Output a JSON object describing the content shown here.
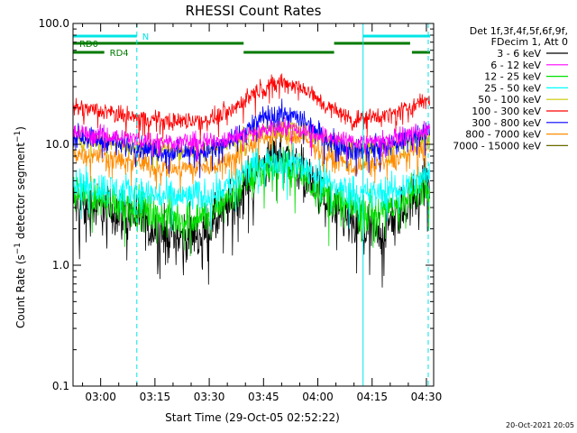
{
  "chart_data": {
    "type": "line",
    "title": "RHESSI Count Rates",
    "xlabel": "Start Time (29-Oct-05 02:52:22)",
    "ylabel": "Count Rate (s⁻¹ detector segment⁻¹)",
    "ylabel_parts": {
      "base": "Count Rate (s",
      "sup1": "−1",
      "mid": " detector segment",
      "sup2": "−1",
      "end": ")"
    },
    "yscale": "log",
    "ylim": [
      0.1,
      100.0
    ],
    "xlim": [
      "02:52:22",
      "04:32:00"
    ],
    "yticks": [
      {
        "value": 0.1,
        "label": "0.1"
      },
      {
        "value": 1.0,
        "label": "1.0"
      },
      {
        "value": 10.0,
        "label": "10.0"
      },
      {
        "value": 100.0,
        "label": "100.0"
      }
    ],
    "xticks": [
      "03:00",
      "03:15",
      "03:30",
      "03:45",
      "04:00",
      "04:15",
      "04:30"
    ],
    "legend_header": [
      "Det 1f,3f,4f,5f,6f,9f,",
      "FDecim 1, Att 0"
    ],
    "legend_position": "right",
    "timestamp": "20-Oct-2021 20:05",
    "flags": [
      {
        "name": "N",
        "color": "#00e5e5",
        "segments": [
          [
            "02:52:22",
            "03:10:00"
          ],
          [
            "04:12:30",
            "04:31:00"
          ]
        ]
      },
      {
        "name": "RD0",
        "color": "#007a00",
        "segments": [
          [
            "02:52:22",
            "03:39:30"
          ],
          [
            "04:04:30",
            "04:25:30"
          ]
        ]
      },
      {
        "name": "RD4",
        "color": "#007a00",
        "segments": [
          [
            "02:52:22",
            "03:01:00"
          ],
          [
            "03:39:30",
            "04:04:30"
          ],
          [
            "04:26:00",
            "04:31:00"
          ]
        ]
      }
    ],
    "vlines": [
      {
        "time": "03:10:00",
        "style": "dashed"
      },
      {
        "time": "04:12:30",
        "style": "solid"
      },
      {
        "time": "04:30:30",
        "style": "dashed"
      }
    ],
    "series": [
      {
        "name": "3 - 6 keV",
        "color": "#000000",
        "values": [
          [
            "02:52:22",
            3.2
          ],
          [
            "03:00",
            2.9
          ],
          [
            "03:10",
            2.5
          ],
          [
            "03:15",
            2.0
          ],
          [
            "03:22",
            1.7
          ],
          [
            "03:30",
            2.0
          ],
          [
            "03:37",
            3.5
          ],
          [
            "03:43",
            6.0
          ],
          [
            "03:49",
            8.5
          ],
          [
            "03:55",
            6.5
          ],
          [
            "04:00",
            4.2
          ],
          [
            "04:05",
            2.6
          ],
          [
            "04:12",
            1.9
          ],
          [
            "04:18",
            2.0
          ],
          [
            "04:24",
            3.0
          ],
          [
            "04:30",
            5.0
          ]
        ]
      },
      {
        "name": "6 - 12 keV",
        "color": "#ff00ff",
        "values": [
          [
            "02:52:22",
            12.5
          ],
          [
            "03:00",
            12.0
          ],
          [
            "03:10",
            11.0
          ],
          [
            "03:20",
            10.5
          ],
          [
            "03:30",
            10.5
          ],
          [
            "03:37",
            11.5
          ],
          [
            "03:44",
            13.0
          ],
          [
            "03:50",
            14.0
          ],
          [
            "03:56",
            13.0
          ],
          [
            "04:03",
            11.5
          ],
          [
            "04:10",
            10.5
          ],
          [
            "04:20",
            11.0
          ],
          [
            "04:30",
            13.0
          ]
        ]
      },
      {
        "name": "12 - 25 keV",
        "color": "#00e000",
        "values": [
          [
            "02:52:22",
            4.0
          ],
          [
            "03:00",
            3.6
          ],
          [
            "03:10",
            3.0
          ],
          [
            "03:15",
            2.6
          ],
          [
            "03:22",
            2.4
          ],
          [
            "03:30",
            2.6
          ],
          [
            "03:37",
            4.0
          ],
          [
            "03:43",
            5.8
          ],
          [
            "03:49",
            6.8
          ],
          [
            "03:55",
            5.8
          ],
          [
            "04:00",
            4.3
          ],
          [
            "04:05",
            3.3
          ],
          [
            "04:12",
            2.8
          ],
          [
            "04:18",
            2.8
          ],
          [
            "04:24",
            3.4
          ],
          [
            "04:30",
            4.8
          ]
        ]
      },
      {
        "name": "25 - 50 keV",
        "color": "#00ffff",
        "values": [
          [
            "02:52:22",
            4.8
          ],
          [
            "03:00",
            4.4
          ],
          [
            "03:10",
            4.0
          ],
          [
            "03:20",
            3.6
          ],
          [
            "03:30",
            3.8
          ],
          [
            "03:37",
            5.0
          ],
          [
            "03:43",
            6.8
          ],
          [
            "03:49",
            7.6
          ],
          [
            "03:55",
            6.8
          ],
          [
            "04:00",
            5.5
          ],
          [
            "04:06",
            4.3
          ],
          [
            "04:14",
            3.8
          ],
          [
            "04:22",
            4.2
          ],
          [
            "04:30",
            5.5
          ]
        ]
      },
      {
        "name": "50 - 100 keV",
        "color": "#c8c800",
        "values": [
          [
            "02:52:22",
            11.0
          ],
          [
            "03:00",
            10.5
          ],
          [
            "03:10",
            9.5
          ],
          [
            "03:20",
            9.0
          ],
          [
            "03:30",
            9.2
          ],
          [
            "03:37",
            10.5
          ],
          [
            "03:44",
            13.0
          ],
          [
            "03:50",
            14.5
          ],
          [
            "03:56",
            13.0
          ],
          [
            "04:03",
            10.5
          ],
          [
            "04:10",
            9.2
          ],
          [
            "04:20",
            9.8
          ],
          [
            "04:30",
            11.5
          ]
        ]
      },
      {
        "name": "100 - 300 keV",
        "color": "#ff0000",
        "values": [
          [
            "02:52:22",
            20.0
          ],
          [
            "03:00",
            19.0
          ],
          [
            "03:10",
            16.5
          ],
          [
            "03:20",
            15.5
          ],
          [
            "03:30",
            16.0
          ],
          [
            "03:37",
            20.0
          ],
          [
            "03:44",
            29.0
          ],
          [
            "03:50",
            33.0
          ],
          [
            "03:56",
            29.0
          ],
          [
            "04:03",
            20.0
          ],
          [
            "04:10",
            16.0
          ],
          [
            "04:20",
            17.5
          ],
          [
            "04:30",
            23.0
          ]
        ]
      },
      {
        "name": "300 - 800 keV",
        "color": "#0000ff",
        "values": [
          [
            "02:52:22",
            12.0
          ],
          [
            "03:00",
            11.0
          ],
          [
            "03:10",
            9.5
          ],
          [
            "03:20",
            8.5
          ],
          [
            "03:30",
            8.8
          ],
          [
            "03:37",
            11.0
          ],
          [
            "03:44",
            16.0
          ],
          [
            "03:50",
            18.0
          ],
          [
            "03:56",
            16.0
          ],
          [
            "04:03",
            11.0
          ],
          [
            "04:10",
            8.8
          ],
          [
            "04:20",
            9.8
          ],
          [
            "04:30",
            13.0
          ]
        ]
      },
      {
        "name": "800 - 7000 keV",
        "color": "#ff8c00",
        "values": [
          [
            "02:52:22",
            8.5
          ],
          [
            "03:00",
            8.0
          ],
          [
            "03:10",
            7.0
          ],
          [
            "03:20",
            6.3
          ],
          [
            "03:30",
            6.5
          ],
          [
            "03:37",
            8.0
          ],
          [
            "03:44",
            11.0
          ],
          [
            "03:50",
            12.5
          ],
          [
            "03:56",
            11.0
          ],
          [
            "04:03",
            8.0
          ],
          [
            "04:10",
            6.5
          ],
          [
            "04:20",
            7.3
          ],
          [
            "04:30",
            9.5
          ]
        ]
      },
      {
        "name": "7000 - 15000 keV",
        "color": "#6b6b00",
        "values": []
      }
    ]
  }
}
